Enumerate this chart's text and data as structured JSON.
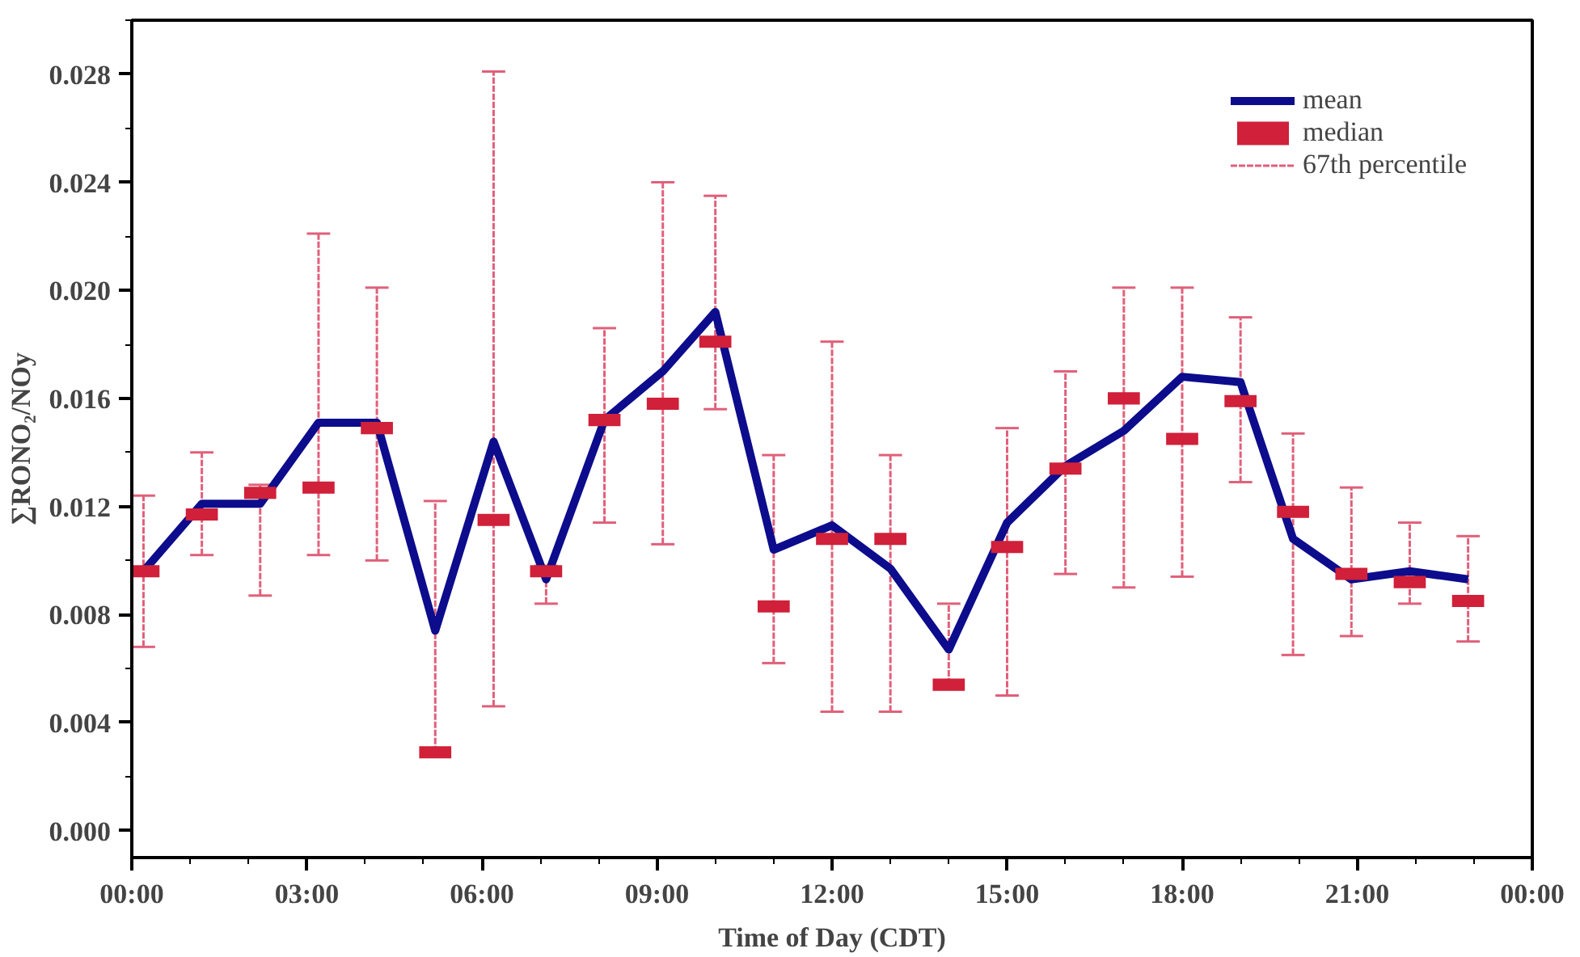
{
  "chart_data": {
    "type": "line",
    "xlabel": "Time of Day (CDT)",
    "ylabel": "∑RONO₂/NOy",
    "x": [
      0.2,
      1.2,
      2.2,
      3.2,
      4.2,
      5.2,
      6.2,
      7.1,
      8.1,
      9.1,
      10.0,
      11.0,
      12.0,
      13.0,
      14.0,
      15.0,
      16.0,
      17.0,
      18.0,
      19.0,
      19.9,
      20.9,
      21.9,
      22.9
    ],
    "series": [
      {
        "name": "mean",
        "color": "#0c0c8c",
        "line_style": "solid",
        "values": [
          0.0096,
          0.0121,
          0.0121,
          0.0151,
          0.0151,
          0.0074,
          0.0144,
          0.0093,
          0.0152,
          0.017,
          0.0192,
          0.0104,
          0.0113,
          0.0097,
          0.0067,
          0.0114,
          0.0135,
          0.0148,
          0.0168,
          0.0166,
          0.0108,
          0.0093,
          0.0096,
          0.0093
        ]
      },
      {
        "name": "median",
        "type": "scatter",
        "marker": "square",
        "color": "#d0203a",
        "values": [
          0.0096,
          0.0117,
          0.0125,
          0.0127,
          0.0149,
          0.0029,
          0.0115,
          0.0096,
          0.0152,
          0.0158,
          0.0181,
          0.0083,
          0.0108,
          0.0108,
          0.0054,
          0.0105,
          0.0134,
          0.016,
          0.0145,
          0.0159,
          0.0118,
          0.0095,
          0.0092,
          0.0085
        ],
        "errors": [
          [
            0.0068,
            0.0124
          ],
          [
            0.0102,
            0.014
          ],
          [
            0.0087,
            0.0128
          ],
          [
            0.0102,
            0.0221
          ],
          [
            0.01,
            0.0201
          ],
          [
            0.0029,
            0.0122
          ],
          [
            0.0046,
            0.0281
          ],
          [
            0.0084,
            0.0098
          ],
          [
            0.0114,
            0.0186
          ],
          [
            0.0106,
            0.024
          ],
          [
            0.0156,
            0.0235
          ],
          [
            0.0062,
            0.0139
          ],
          [
            0.0044,
            0.0181
          ],
          [
            0.0044,
            0.0139
          ],
          [
            0.0054,
            0.0084
          ],
          [
            0.005,
            0.0149
          ],
          [
            0.0095,
            0.017
          ],
          [
            0.009,
            0.0201
          ],
          [
            0.0094,
            0.0201
          ],
          [
            0.0129,
            0.019
          ],
          [
            0.0065,
            0.0147
          ],
          [
            0.0072,
            0.0127
          ],
          [
            0.0084,
            0.0114
          ],
          [
            0.007,
            0.0109
          ]
        ]
      }
    ],
    "annotations": [
      "67th percentile"
    ],
    "xlim": [
      0,
      24
    ],
    "xticks": [
      {
        "value": 0,
        "label": "00:00"
      },
      {
        "value": 3,
        "label": "03:00"
      },
      {
        "value": 6,
        "label": "06:00"
      },
      {
        "value": 9,
        "label": "09:00"
      },
      {
        "value": 12,
        "label": "12:00"
      },
      {
        "value": 15,
        "label": "15:00"
      },
      {
        "value": 18,
        "label": "18:00"
      },
      {
        "value": 21,
        "label": "21:00"
      },
      {
        "value": 24,
        "label": "00:00"
      }
    ],
    "ylim": [
      -0.001,
      0.03
    ],
    "yticks": [
      {
        "value": 0,
        "label": "0.000"
      },
      {
        "value": 0.004,
        "label": "0.004"
      },
      {
        "value": 0.008,
        "label": "0.008"
      },
      {
        "value": 0.012,
        "label": "0.012"
      },
      {
        "value": 0.016,
        "label": "0.016"
      },
      {
        "value": 0.02,
        "label": "0.020"
      },
      {
        "value": 0.024,
        "label": "0.024"
      },
      {
        "value": 0.028,
        "label": "0.028"
      }
    ],
    "legend": "top right"
  }
}
